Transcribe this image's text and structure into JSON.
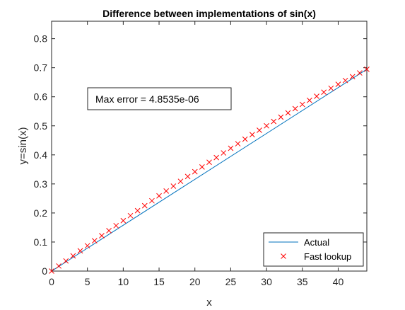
{
  "chart_data": {
    "type": "line",
    "title": "Difference between implementations of sin(x)",
    "xlabel": "x",
    "ylabel": "y=sin(x)",
    "xlim": [
      0,
      44
    ],
    "ylim": [
      0,
      0.86
    ],
    "xticks": [
      0,
      5,
      10,
      15,
      20,
      25,
      30,
      35,
      40
    ],
    "yticks": [
      0,
      0.1,
      0.2,
      0.3,
      0.4,
      0.5,
      0.6,
      0.7,
      0.8
    ],
    "xtick_labels": [
      "0",
      "5",
      "10",
      "15",
      "20",
      "25",
      "30",
      "35",
      "40"
    ],
    "ytick_labels": [
      "0",
      "0.1",
      "0.2",
      "0.3",
      "0.4",
      "0.5",
      "0.6",
      "0.7",
      "0.8"
    ],
    "grid": false,
    "legend_position": "bottom-right",
    "annotation": "Max error = 4.8535e-06",
    "series": [
      {
        "name": "Actual",
        "style": "line",
        "color": "#0072BD",
        "x": [
          0,
          44
        ],
        "y": [
          0,
          0.6947
        ]
      },
      {
        "name": "Fast lookup",
        "style": "x-marker",
        "color": "#FF0000",
        "x": [
          0,
          1,
          2,
          3,
          4,
          5,
          6,
          7,
          8,
          9,
          10,
          11,
          12,
          13,
          14,
          15,
          16,
          17,
          18,
          19,
          20,
          21,
          22,
          23,
          24,
          25,
          26,
          27,
          28,
          29,
          30,
          31,
          32,
          33,
          34,
          35,
          36,
          37,
          38,
          39,
          40,
          41,
          42,
          43,
          44
        ],
        "y": [
          0,
          0.0175,
          0.0349,
          0.0523,
          0.0698,
          0.0872,
          0.1045,
          0.1219,
          0.1392,
          0.1564,
          0.1736,
          0.1908,
          0.2079,
          0.225,
          0.2419,
          0.2588,
          0.2756,
          0.2924,
          0.309,
          0.3256,
          0.342,
          0.3584,
          0.3746,
          0.3907,
          0.4067,
          0.4226,
          0.4384,
          0.454,
          0.4695,
          0.4848,
          0.5,
          0.515,
          0.5299,
          0.5446,
          0.5592,
          0.5736,
          0.5878,
          0.6018,
          0.6157,
          0.6293,
          0.6428,
          0.6561,
          0.6691,
          0.682,
          0.6947
        ]
      }
    ]
  }
}
